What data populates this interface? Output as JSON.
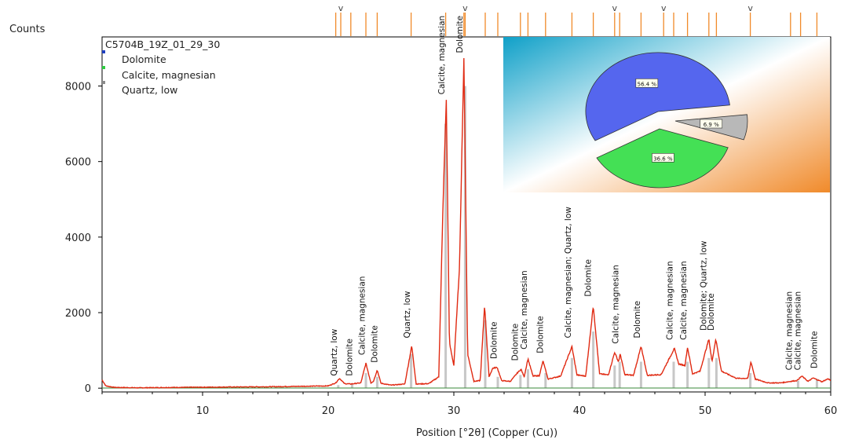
{
  "chart_data": {
    "type": "line",
    "title": "",
    "ylabel": "Counts",
    "xlabel": "Position [°2θ] (Copper (Cu))",
    "xlim": [
      2,
      60
    ],
    "ylim": [
      -100,
      9300
    ],
    "x_ticks": [
      10,
      20,
      30,
      40,
      50,
      60
    ],
    "y_ticks": [
      0,
      2000,
      4000,
      6000,
      8000
    ],
    "grid": false,
    "legend": {
      "placement": "top-left",
      "sample_name": "C5704B_19Z_01_29_30",
      "entries": [
        {
          "name": "Dolomite",
          "color": "#1f3fbf"
        },
        {
          "name": "Calcite, magnesian",
          "color": "#2ecc40"
        },
        {
          "name": "Quartz, low",
          "color": "#8a8a8a"
        }
      ]
    },
    "series": [
      {
        "name": "C5704B_19Z_01_29_30",
        "color": "#e02a12",
        "points": [
          [
            2.0,
            220
          ],
          [
            2.3,
            60
          ],
          [
            3,
            20
          ],
          [
            5,
            10
          ],
          [
            8,
            20
          ],
          [
            12,
            30
          ],
          [
            16,
            40
          ],
          [
            18,
            50
          ],
          [
            20,
            60
          ],
          [
            20.6,
            140
          ],
          [
            20.9,
            260
          ],
          [
            21.3,
            120
          ],
          [
            21.8,
            110
          ],
          [
            22.6,
            140
          ],
          [
            23.0,
            660
          ],
          [
            23.4,
            140
          ],
          [
            23.6,
            180
          ],
          [
            23.9,
            480
          ],
          [
            24.2,
            130
          ],
          [
            25,
            80
          ],
          [
            26.1,
            110
          ],
          [
            26.65,
            1120
          ],
          [
            27.0,
            110
          ],
          [
            28.0,
            120
          ],
          [
            28.8,
            300
          ],
          [
            29.15,
            5000
          ],
          [
            29.4,
            7650
          ],
          [
            29.65,
            1200
          ],
          [
            30.0,
            600
          ],
          [
            30.45,
            3200
          ],
          [
            30.8,
            8750
          ],
          [
            31.1,
            900
          ],
          [
            31.6,
            180
          ],
          [
            32.1,
            200
          ],
          [
            32.45,
            2200
          ],
          [
            32.8,
            300
          ],
          [
            33.1,
            530
          ],
          [
            33.45,
            550
          ],
          [
            33.8,
            200
          ],
          [
            34.5,
            180
          ],
          [
            35.1,
            420
          ],
          [
            35.35,
            500
          ],
          [
            35.6,
            300
          ],
          [
            35.9,
            780
          ],
          [
            36.3,
            320
          ],
          [
            36.8,
            330
          ],
          [
            37.1,
            720
          ],
          [
            37.5,
            240
          ],
          [
            38.5,
            320
          ],
          [
            39.4,
            1100
          ],
          [
            39.8,
            350
          ],
          [
            40.5,
            320
          ],
          [
            41.1,
            2180
          ],
          [
            41.6,
            380
          ],
          [
            42.3,
            350
          ],
          [
            42.8,
            950
          ],
          [
            43.1,
            700
          ],
          [
            43.25,
            900
          ],
          [
            43.6,
            360
          ],
          [
            44.3,
            340
          ],
          [
            44.9,
            1100
          ],
          [
            45.4,
            340
          ],
          [
            46.5,
            360
          ],
          [
            47.55,
            1050
          ],
          [
            47.9,
            640
          ],
          [
            48.4,
            600
          ],
          [
            48.6,
            1080
          ],
          [
            49.0,
            380
          ],
          [
            49.6,
            450
          ],
          [
            50.3,
            1300
          ],
          [
            50.55,
            700
          ],
          [
            50.85,
            1300
          ],
          [
            51.3,
            450
          ],
          [
            52.5,
            260
          ],
          [
            53.4,
            260
          ],
          [
            53.65,
            700
          ],
          [
            54.0,
            240
          ],
          [
            55.0,
            140
          ],
          [
            56.0,
            140
          ],
          [
            56.8,
            180
          ],
          [
            57.3,
            200
          ],
          [
            57.7,
            320
          ],
          [
            58.2,
            180
          ],
          [
            58.6,
            270
          ],
          [
            59.3,
            170
          ],
          [
            59.8,
            250
          ],
          [
            60,
            200
          ]
        ]
      }
    ],
    "reference_sticks": [
      {
        "x": 20.8,
        "h": 80
      },
      {
        "x": 21.9,
        "h": 130
      },
      {
        "x": 23.0,
        "h": 400
      },
      {
        "x": 23.9,
        "h": 300
      },
      {
        "x": 26.6,
        "h": 900
      },
      {
        "x": 29.35,
        "h": 7000
      },
      {
        "x": 30.9,
        "h": 8000
      },
      {
        "x": 32.5,
        "h": 1800
      },
      {
        "x": 33.5,
        "h": 300
      },
      {
        "x": 35.3,
        "h": 350
      },
      {
        "x": 35.9,
        "h": 500
      },
      {
        "x": 37.3,
        "h": 400
      },
      {
        "x": 39.4,
        "h": 800
      },
      {
        "x": 41.1,
        "h": 1500
      },
      {
        "x": 42.8,
        "h": 600
      },
      {
        "x": 43.2,
        "h": 700
      },
      {
        "x": 44.9,
        "h": 700
      },
      {
        "x": 47.5,
        "h": 700
      },
      {
        "x": 48.6,
        "h": 700
      },
      {
        "x": 50.3,
        "h": 800
      },
      {
        "x": 50.9,
        "h": 800
      },
      {
        "x": 53.6,
        "h": 400
      },
      {
        "x": 57.4,
        "h": 200
      },
      {
        "x": 58.9,
        "h": 250
      }
    ],
    "top_markers": [
      20.6,
      21.0,
      21.8,
      23.0,
      23.9,
      26.6,
      29.35,
      30.8,
      30.9,
      32.5,
      33.5,
      35.3,
      35.9,
      37.3,
      39.4,
      41.1,
      42.8,
      43.2,
      44.9,
      46.7,
      47.5,
      48.6,
      50.3,
      50.9,
      53.6,
      56.8,
      57.6,
      58.9
    ],
    "top_markers_v": [
      21.0,
      30.9,
      42.8,
      46.7,
      53.6
    ],
    "peak_labels": [
      {
        "x": 20.7,
        "y": 200,
        "text": "Quartz, low"
      },
      {
        "x": 21.9,
        "y": 200,
        "text": "Dolomite"
      },
      {
        "x": 22.9,
        "y": 750,
        "text": "Calcite, magnesian"
      },
      {
        "x": 23.9,
        "y": 550,
        "text": "Dolomite"
      },
      {
        "x": 26.5,
        "y": 1200,
        "text": "Quartz, low"
      },
      {
        "x": 29.25,
        "y": 7650,
        "text": "Calcite, magnesian"
      },
      {
        "x": 30.7,
        "y": 8750,
        "text": "Dolomite"
      },
      {
        "x": 33.4,
        "y": 650,
        "text": "Dolomite"
      },
      {
        "x": 35.1,
        "y": 600,
        "text": "Dolomite"
      },
      {
        "x": 35.8,
        "y": 900,
        "text": "Calcite, magnesian"
      },
      {
        "x": 37.1,
        "y": 800,
        "text": "Dolomite"
      },
      {
        "x": 39.3,
        "y": 1200,
        "text": "Calcite, magnesian; Quartz, low"
      },
      {
        "x": 40.9,
        "y": 2300,
        "text": "Dolomite"
      },
      {
        "x": 43.1,
        "y": 1050,
        "text": "Calcite, magnesian"
      },
      {
        "x": 44.8,
        "y": 1200,
        "text": "Dolomite"
      },
      {
        "x": 47.4,
        "y": 1150,
        "text": "Calcite, magnesian"
      },
      {
        "x": 48.5,
        "y": 1150,
        "text": "Calcite, magnesian"
      },
      {
        "x": 50.1,
        "y": 1400,
        "text": "Dolomite; Quartz, low"
      },
      {
        "x": 50.7,
        "y": 1400,
        "text": "Dolomite"
      },
      {
        "x": 56.9,
        "y": 350,
        "text": "Calcite, magnesian"
      },
      {
        "x": 57.6,
        "y": 350,
        "text": "Calcite, magnesian"
      },
      {
        "x": 58.9,
        "y": 400,
        "text": "Dolomite"
      }
    ],
    "inset_pie": {
      "type": "pie",
      "background": {
        "color_from": "#0fa0c8",
        "color_mid": "#ffffff",
        "color_to": "#f08a2a"
      },
      "slices": [
        {
          "label": "56.4 %",
          "value": 56.4,
          "color": "#5566ee",
          "name": "Dolomite"
        },
        {
          "label": "36.6 %",
          "value": 36.6,
          "color": "#44e055",
          "name": "Calcite, magnesian"
        },
        {
          "label": "6.9 %",
          "value": 6.9,
          "color": "#b8b8b8",
          "name": "Quartz, low"
        }
      ]
    }
  }
}
